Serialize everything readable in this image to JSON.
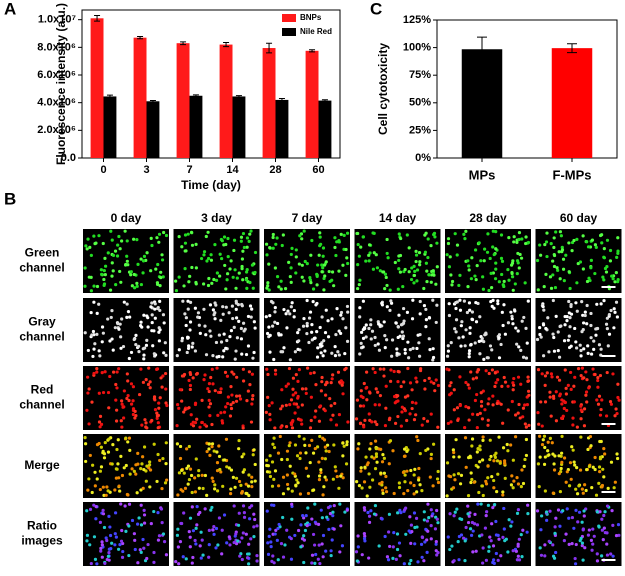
{
  "panel_labels": [
    "A",
    "B",
    "C"
  ],
  "chart_data": [
    {
      "type": "bar",
      "x_label": "Time (day)",
      "y_label": "Fluorescence intensity (a.u.)",
      "categories": [
        "0",
        "3",
        "7",
        "14",
        "28",
        "60"
      ],
      "series": [
        {
          "name": "BNPs",
          "color": "#ff1a1a",
          "values": [
            10100000,
            8700000,
            8300000,
            8200000,
            7950000,
            7750000
          ],
          "errors": [
            200000,
            80000,
            100000,
            150000,
            350000,
            80000
          ]
        },
        {
          "name": "Nile Red",
          "color": "#000000",
          "values": [
            4450000,
            4100000,
            4500000,
            4450000,
            4200000,
            4150000
          ],
          "errors": [
            100000,
            60000,
            60000,
            60000,
            100000,
            60000
          ]
        }
      ],
      "ylim": [
        0,
        10700000
      ],
      "yticks": [
        {
          "value": 0,
          "label": "0.0"
        },
        {
          "value": 2000000,
          "label": "2.0x10⁶"
        },
        {
          "value": 4000000,
          "label": "4.0x10⁶"
        },
        {
          "value": 6000000,
          "label": "6.0x10⁶"
        },
        {
          "value": 8000000,
          "label": "8.0x10⁶"
        },
        {
          "value": 10000000,
          "label": "1.0x10⁷"
        }
      ],
      "legend": "upper right"
    },
    {
      "type": "bar",
      "y_label": "Cell cytotoxicity",
      "categories": [
        "MPs",
        "F-MPs"
      ],
      "values": [
        98.5,
        99.5
      ],
      "errors": [
        11,
        4
      ],
      "colors": [
        "#000000",
        "#ff0000"
      ],
      "ylim": [
        0,
        125
      ],
      "yticks": [
        {
          "value": 0,
          "label": "0%"
        },
        {
          "value": 25,
          "label": "25%"
        },
        {
          "value": 50,
          "label": "50%"
        },
        {
          "value": 75,
          "label": "75%"
        },
        {
          "value": 100,
          "label": "100%"
        },
        {
          "value": 125,
          "label": "125%"
        }
      ]
    }
  ],
  "panel_b": {
    "columns": [
      "0 day",
      "3 day",
      "7 day",
      "14 day",
      "28 day",
      "60 day"
    ],
    "rows": [
      [
        "Green",
        "channel"
      ],
      [
        "Gray",
        "channel"
      ],
      [
        "Red",
        "channel"
      ],
      [
        "Merge"
      ],
      [
        "Ratio",
        "images"
      ]
    ]
  }
}
